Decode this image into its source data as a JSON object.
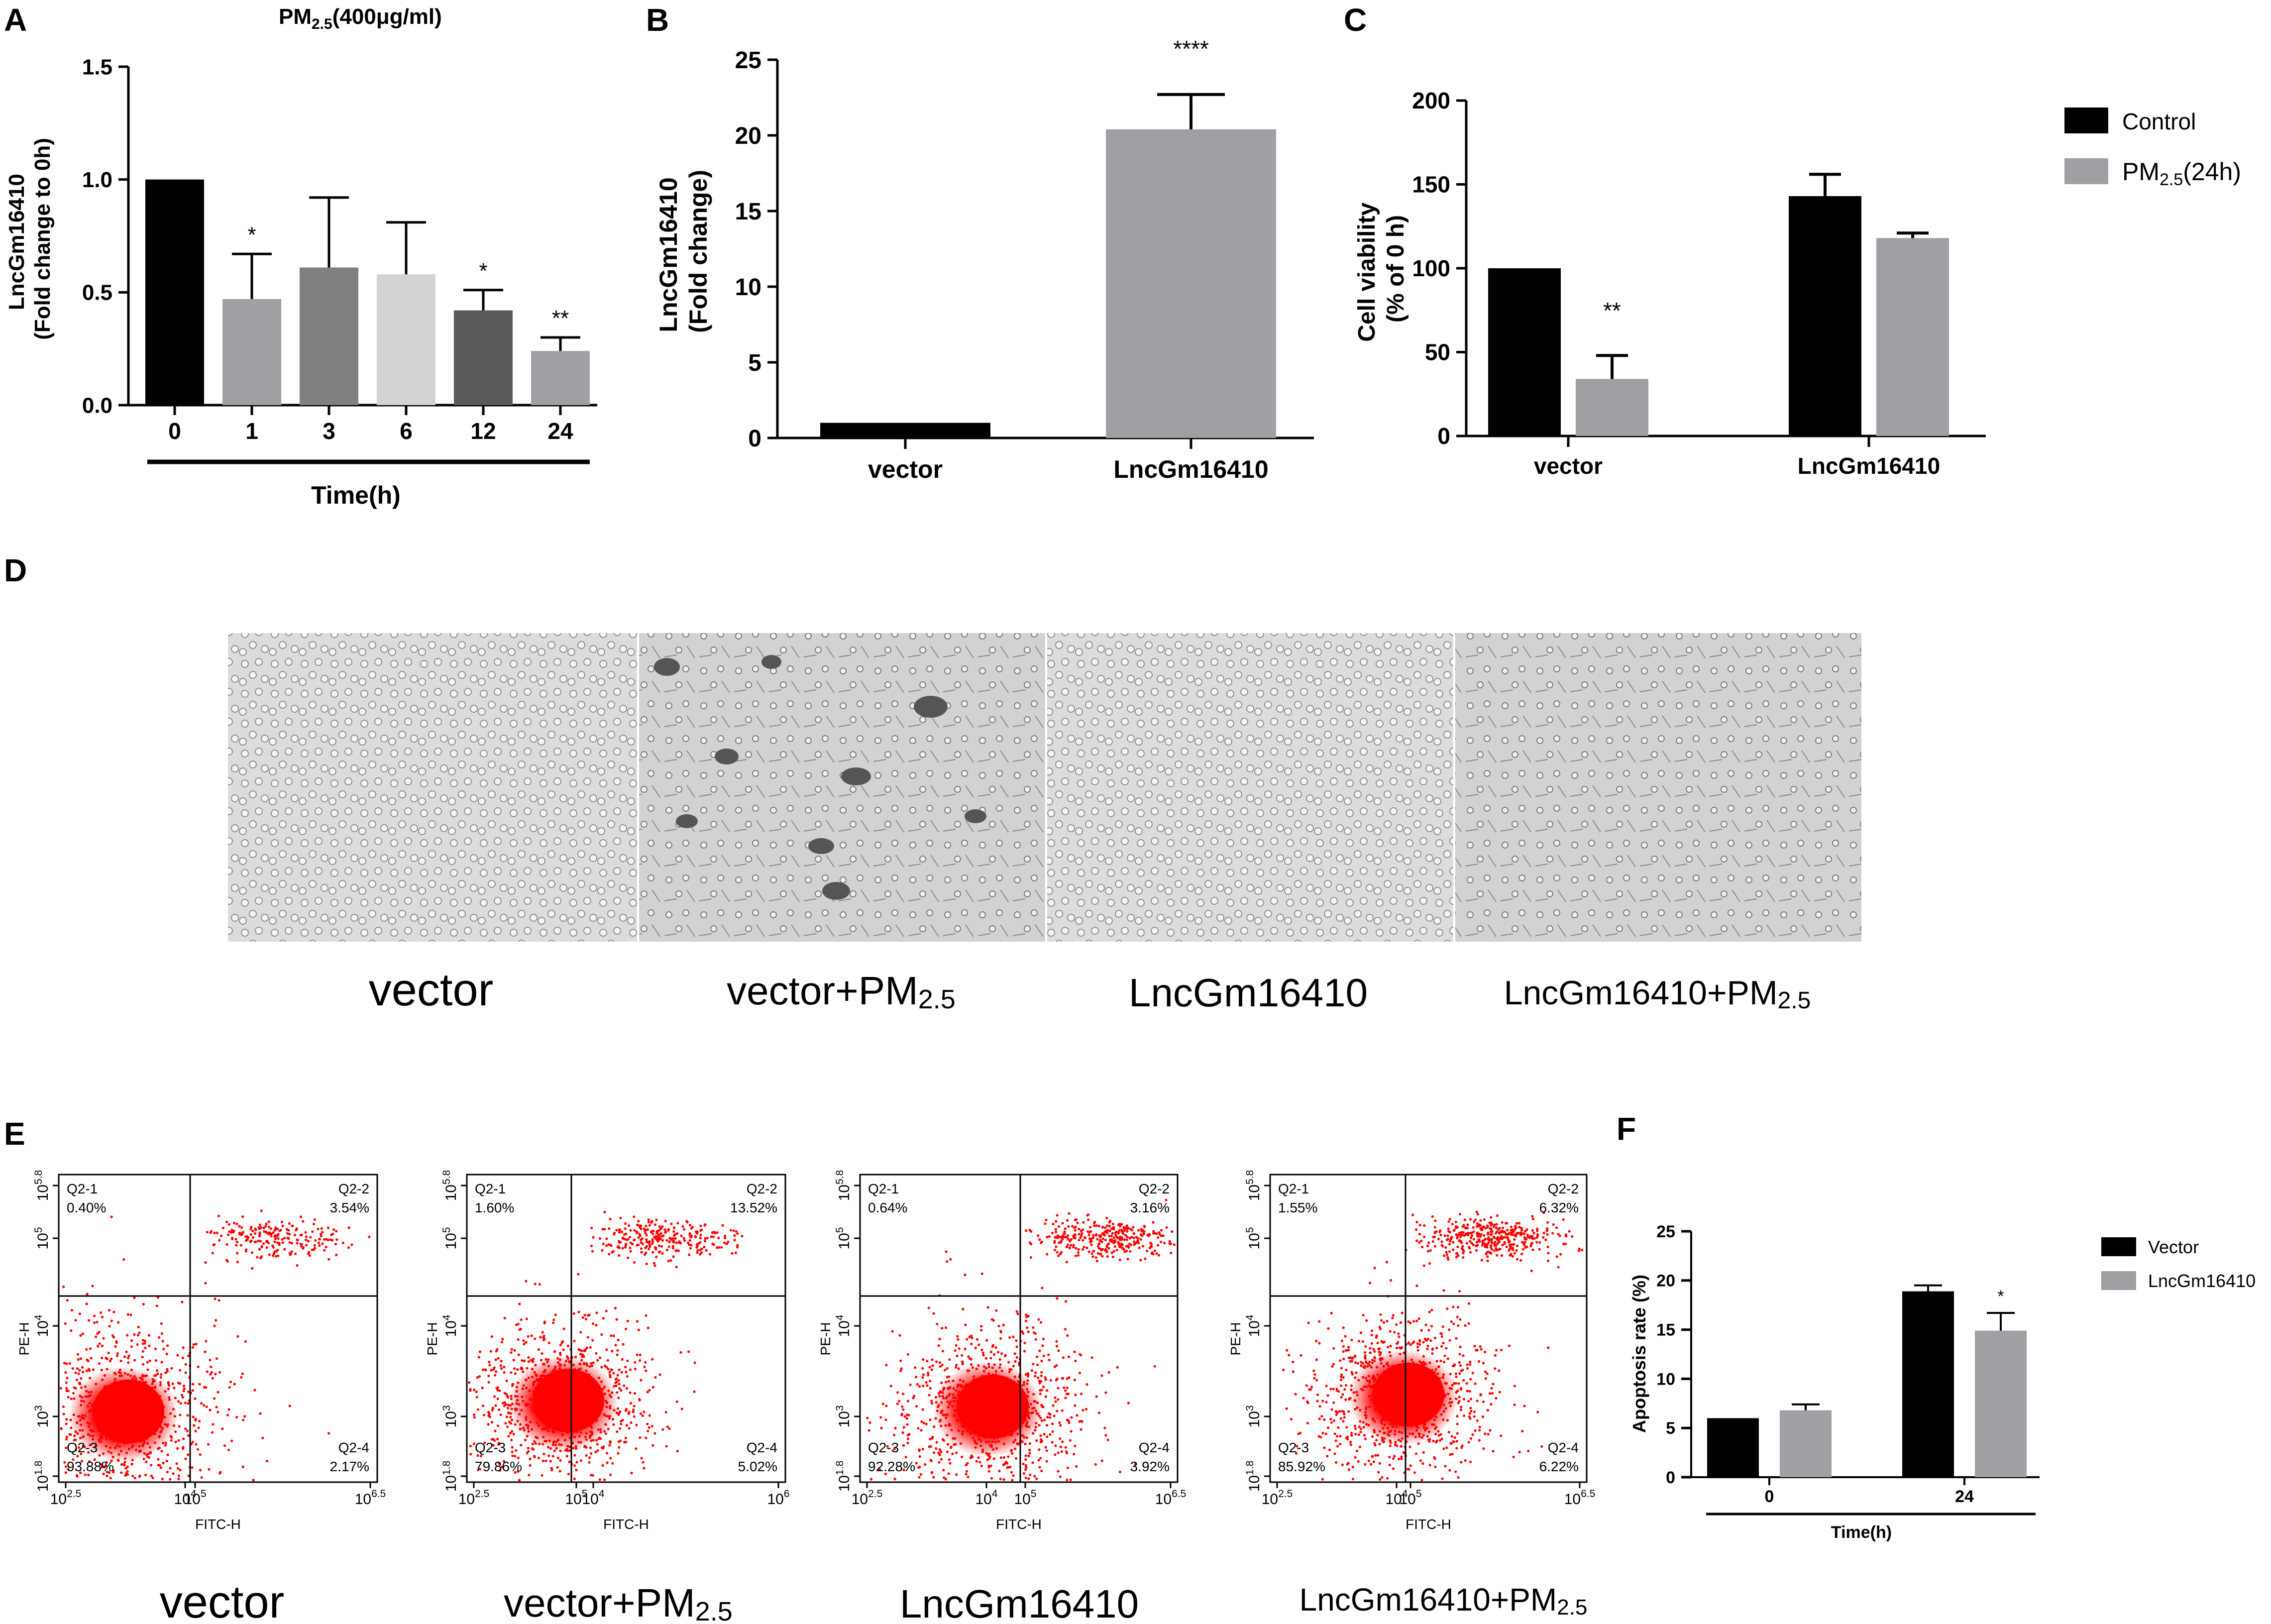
{
  "panels": {
    "A": {
      "letter": "A",
      "title_main": "PM",
      "title_sub": "2.5",
      "title_rest": "(400μg/ml)",
      "ylabel_line1": "LncGm16410",
      "ylabel_line2": "(Fold change to 0h)",
      "xlabel": "Time(h)",
      "y_ticks": [
        "0.0",
        "0.5",
        "1.0",
        "1.5"
      ]
    },
    "B": {
      "letter": "B",
      "ylabel_line1": "LncGm16410",
      "ylabel_line2": "(Fold change)",
      "y_ticks": [
        "0",
        "5",
        "10",
        "15",
        "20",
        "25"
      ]
    },
    "C": {
      "letter": "C",
      "ylabel_line1": "Cell viability",
      "ylabel_line2": "(% of 0 h)",
      "y_ticks": [
        "0",
        "50",
        "100",
        "150",
        "200"
      ],
      "legend": [
        {
          "label": "Control",
          "color": "#000000"
        },
        {
          "label_main": "PM",
          "label_sub": "2.5",
          "label_rest": "(24h)",
          "color": "#a0a0a4"
        }
      ]
    },
    "D": {
      "letter": "D",
      "captions": [
        {
          "main": "vector",
          "sub": ""
        },
        {
          "main": "vector+PM",
          "sub": "2.5"
        },
        {
          "main": "LncGm16410",
          "sub": ""
        },
        {
          "main": "LncGm16410+PM",
          "sub": "2.5"
        }
      ]
    },
    "E": {
      "letter": "E",
      "xaxis_label": "FITC-H",
      "yaxis_label": "PE-H",
      "y_ticks": [
        {
          "base": "10",
          "exp": "1.8"
        },
        {
          "base": "10",
          "exp": "3"
        },
        {
          "base": "10",
          "exp": "4"
        },
        {
          "base": "10",
          "exp": "5"
        },
        {
          "base": "10",
          "exp": "5.8"
        }
      ],
      "plots": [
        {
          "caption_main": "vector",
          "caption_sub": "",
          "x_ticks": [
            {
              "base": "10",
              "exp": "2.5"
            },
            {
              "base": "10",
              "exp": "4"
            },
            {
              "base": "10",
              "exp": "5"
            },
            {
              "base": "10",
              "exp": "6.5"
            }
          ],
          "quadrants": [
            {
              "name": "Q2-1",
              "value": "0.40%"
            },
            {
              "name": "Q2-2",
              "value": "3.54%"
            },
            {
              "name": "Q2-3",
              "value": "93.88%"
            },
            {
              "name": "Q2-4",
              "value": "2.17%"
            }
          ]
        },
        {
          "caption_main": "vector+PM",
          "caption_sub": "2.5",
          "x_ticks": [
            {
              "base": "10",
              "exp": "2.5"
            },
            {
              "base": "10",
              "exp": "4"
            },
            {
              "base": "10",
              "exp": "5"
            },
            {
              "base": "10",
              "exp": "6"
            }
          ],
          "quadrants": [
            {
              "name": "Q2-1",
              "value": "1.60%"
            },
            {
              "name": "Q2-2",
              "value": "13.52%"
            },
            {
              "name": "Q2-3",
              "value": "79.86%"
            },
            {
              "name": "Q2-4",
              "value": "5.02%"
            }
          ]
        },
        {
          "caption_main": "LncGm16410",
          "caption_sub": "",
          "x_ticks": [
            {
              "base": "10",
              "exp": "2.5"
            },
            {
              "base": "10",
              "exp": "4"
            },
            {
              "base": "10",
              "exp": "5"
            },
            {
              "base": "10",
              "exp": "6.5"
            }
          ],
          "quadrants": [
            {
              "name": "Q2-1",
              "value": "0.64%"
            },
            {
              "name": "Q2-2",
              "value": "3.16%"
            },
            {
              "name": "Q2-3",
              "value": "92.28%"
            },
            {
              "name": "Q2-4",
              "value": "3.92%"
            }
          ]
        },
        {
          "caption_main": "LncGm16410+PM",
          "caption_sub": "2.5",
          "x_ticks": [
            {
              "base": "10",
              "exp": "2.5"
            },
            {
              "base": "10",
              "exp": "4"
            },
            {
              "base": "10",
              "exp": "5"
            },
            {
              "base": "10",
              "exp": "6.5"
            }
          ],
          "quadrants": [
            {
              "name": "Q2-1",
              "value": "1.55%"
            },
            {
              "name": "Q2-2",
              "value": "6.32%"
            },
            {
              "name": "Q2-3",
              "value": "85.92%"
            },
            {
              "name": "Q2-4",
              "value": "6.22%"
            }
          ]
        }
      ]
    },
    "F": {
      "letter": "F",
      "ylabel": "Apoptosis rate (%)",
      "xlabel": "Time(h)",
      "y_ticks": [
        "0",
        "5",
        "10",
        "15",
        "20",
        "25"
      ],
      "legend": [
        {
          "label": "Vector",
          "color": "#000000"
        },
        {
          "label": "LncGm16410",
          "color": "#a0a0a4"
        }
      ]
    }
  },
  "chart_data": [
    {
      "panel": "A",
      "type": "bar",
      "categories": [
        "0",
        "1",
        "3",
        "6",
        "12",
        "24"
      ],
      "values": [
        1.0,
        0.47,
        0.61,
        0.58,
        0.42,
        0.24
      ],
      "errors": [
        0,
        0.2,
        0.31,
        0.23,
        0.09,
        0.06
      ],
      "colors": [
        "#000000",
        "#a0a0a4",
        "#808080",
        "#d3d3d3",
        "#5a5a5a",
        "#a0a0a4"
      ],
      "significance": [
        "",
        "*",
        "",
        "",
        "*",
        "**"
      ],
      "title": "PM2.5(400μg/ml)",
      "xlabel": "Time(h)",
      "ylabel": "LncGm16410 (Fold change to 0h)",
      "ylim": [
        0,
        1.5
      ]
    },
    {
      "panel": "B",
      "type": "bar",
      "categories": [
        "vector",
        "LncGm16410"
      ],
      "values": [
        1.0,
        20.4
      ],
      "errors": [
        0,
        2.3
      ],
      "colors": [
        "#000000",
        "#a0a0a4"
      ],
      "significance": [
        "",
        "****"
      ],
      "ylabel": "LncGm16410 (Fold change)",
      "ylim": [
        0,
        25
      ]
    },
    {
      "panel": "C",
      "type": "bar",
      "categories": [
        "vector",
        "LncGm16410"
      ],
      "series": [
        {
          "name": "Control",
          "values": [
            100,
            143
          ],
          "errors": [
            0,
            13
          ],
          "color": "#000000",
          "significance": [
            "",
            ""
          ]
        },
        {
          "name": "PM2.5(24h)",
          "values": [
            34,
            118
          ],
          "errors": [
            14,
            3
          ],
          "color": "#a0a0a4",
          "significance": [
            "**",
            ""
          ]
        }
      ],
      "ylabel": "Cell viability (% of 0 h)",
      "ylim": [
        0,
        200
      ],
      "legend": "top-right"
    },
    {
      "panel": "F",
      "type": "bar",
      "categories": [
        "0",
        "24"
      ],
      "series": [
        {
          "name": "Vector",
          "values": [
            6.0,
            18.9
          ],
          "errors": [
            0,
            0.6
          ],
          "color": "#000000",
          "significance": [
            "",
            ""
          ]
        },
        {
          "name": "LncGm16410",
          "values": [
            6.8,
            14.9
          ],
          "errors": [
            0.6,
            1.8
          ],
          "color": "#a0a0a4",
          "significance": [
            "",
            "*"
          ]
        }
      ],
      "xlabel": "Time(h)",
      "ylabel": "Apoptosis rate (%)",
      "ylim": [
        0,
        25
      ],
      "legend": "top-right"
    }
  ]
}
